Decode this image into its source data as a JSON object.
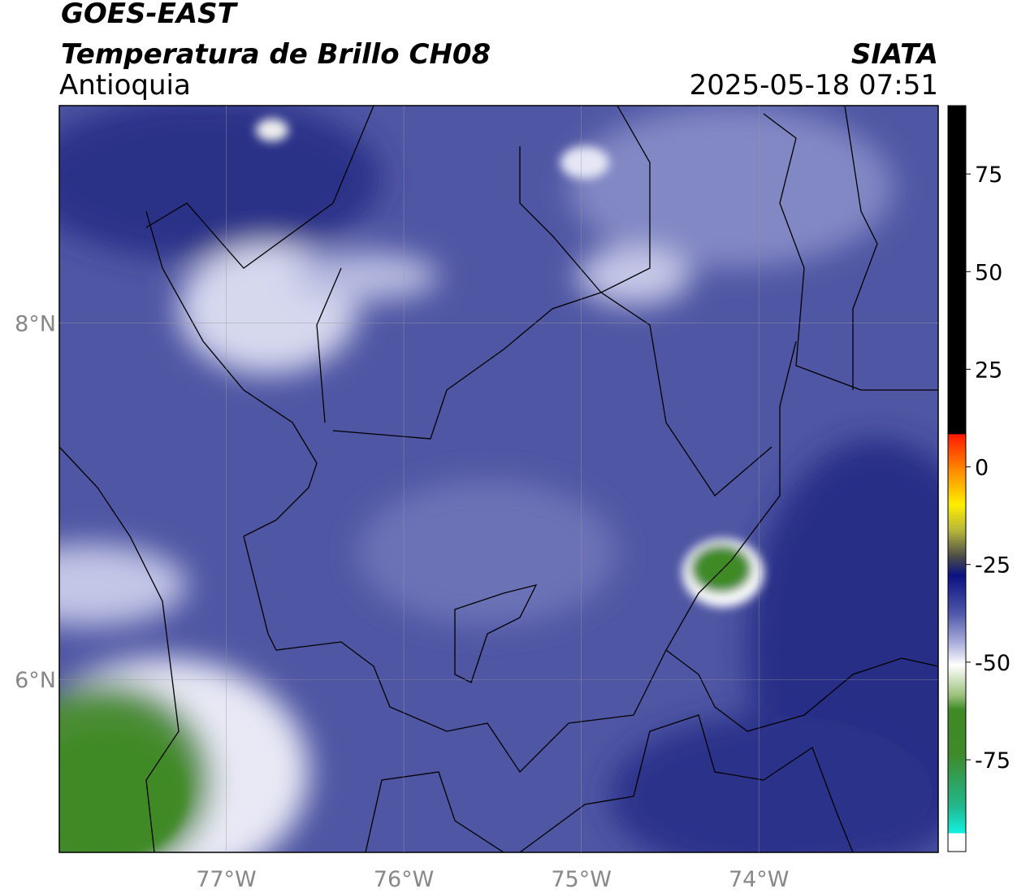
{
  "header": {
    "title": "GOES-EAST",
    "subtitle": "Temperatura de Brillo CH08",
    "region": "Antioquia",
    "source": "SIATA",
    "timestamp": "2025-05-18 07:51"
  },
  "map": {
    "xlim": [
      -77.94,
      -72.99
    ],
    "ylim": [
      5.03,
      9.22
    ],
    "xticks": [
      {
        "value": -77,
        "label": "77°W"
      },
      {
        "value": -76,
        "label": "76°W"
      },
      {
        "value": -75,
        "label": "75°W"
      },
      {
        "value": -74,
        "label": "74°W"
      }
    ],
    "yticks": [
      {
        "value": 6,
        "label": "6°N"
      },
      {
        "value": 8,
        "label": "8°N"
      }
    ]
  },
  "colorbar": {
    "lim": [
      -98.5,
      92.5
    ],
    "ticks": [
      -75,
      -50,
      -25,
      0,
      25,
      50,
      75
    ]
  }
}
